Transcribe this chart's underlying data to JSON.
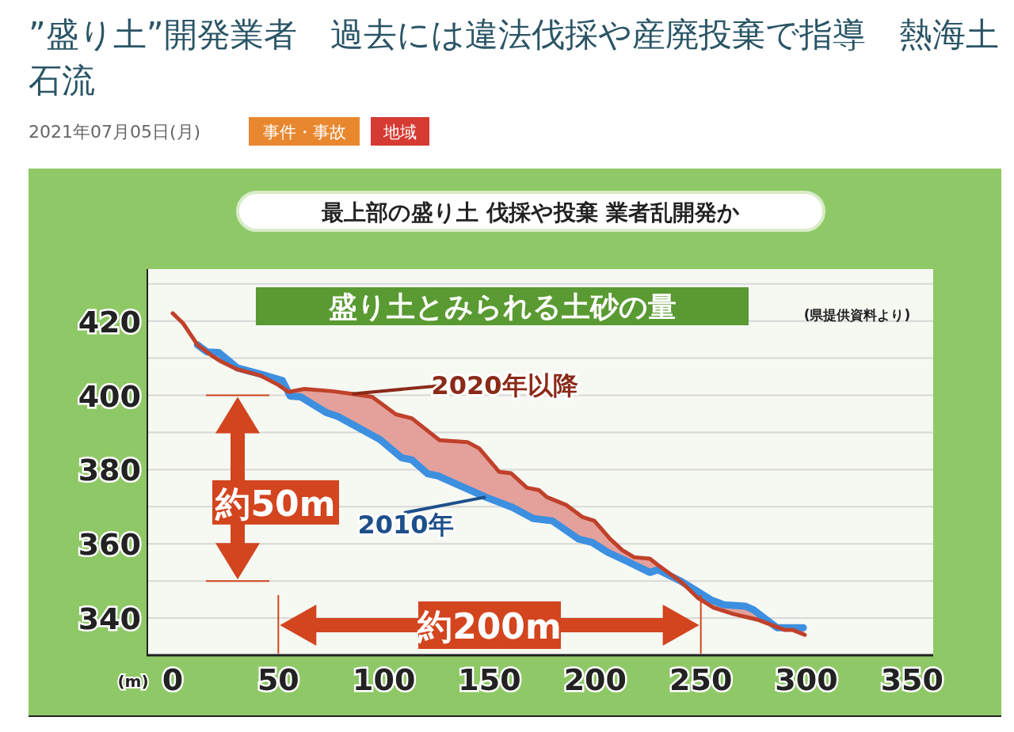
{
  "chart_data": {
    "type": "line",
    "title": "盛り土とみられる土砂の量",
    "subtitle": "最上部の盛り土 伐採や投棄 業者乱開発か",
    "xlabel": "(m)",
    "annotations": [
      "”盛り土”開発業者　過去には違法伐採や産廃投棄で指導　熱海土石流",
      "2021年07月05日(月)",
      "事件・事故",
      "地域",
      "(県提供資料より)",
      "約50m",
      "約200m"
    ],
    "series": [
      {
        "name": "2020年以降",
        "color": "#c0412a",
        "x": [
          0,
          4.9,
          11.7,
          16.2,
          19.2,
          22.9,
          30.5,
          41.7,
          50,
          54.9,
          62.4,
          75.6,
          85,
          94.4,
          105.6,
          113.2,
          126.3,
          139.5,
          145.1,
          154.5,
          160.2,
          167.7,
          173.3,
          177.1,
          186.5,
          194,
          199.6,
          207.1,
          212.8,
          218.4,
          225.9,
          229.7,
          241,
          248.5,
          256,
          265.4,
          276.7,
          289.8,
          293.6,
          299.2
        ],
        "values": [
          422.1,
          419.4,
          413.6,
          411.7,
          410.4,
          409.1,
          407,
          405.3,
          402.8,
          400.9,
          401.7,
          401.1,
          400.4,
          399.6,
          394.9,
          393.8,
          387.9,
          387.4,
          385.7,
          379.4,
          379,
          375.1,
          374.5,
          372.6,
          370.4,
          367.2,
          366.2,
          361.3,
          358.3,
          356.4,
          356,
          354.3,
          349.6,
          345.5,
          342.8,
          341.1,
          339.6,
          336.8,
          336.8,
          335.5
        ]
      },
      {
        "name": "2010年",
        "color": "#3d8fe0",
        "x": [
          11.7,
          16.2,
          21.8,
          30.5,
          41.7,
          51.9,
          55.6,
          60.5,
          72.9,
          78.2,
          98.1,
          108.3,
          113.2,
          120.7,
          125.6,
          148.1,
          160.9,
          170.7,
          179.7,
          192.1,
          198.5,
          206,
          215.8,
          225.9,
          229.7,
          241,
          254.9,
          260.9,
          271.1,
          274.8,
          286.1,
          298.5
        ],
        "values": [
          413.6,
          411.7,
          411.5,
          407.4,
          405.7,
          404,
          399.8,
          399.6,
          395.3,
          394.3,
          388.1,
          383.2,
          382.6,
          378.9,
          378.3,
          372.6,
          369.8,
          366.8,
          366.2,
          361.3,
          360.4,
          357.7,
          355.1,
          352.3,
          353,
          349.8,
          344.9,
          343.6,
          343.2,
          342.3,
          337.4,
          337.4
        ]
      }
    ],
    "ref_lines": [
      {
        "axis": "y",
        "value": 400,
        "color": "#d2451e"
      },
      {
        "axis": "y",
        "value": 350,
        "color": "#d2451e"
      },
      {
        "axis": "x",
        "value": 50,
        "color": "#d2451e"
      },
      {
        "axis": "x",
        "value": 250,
        "color": "#d2451e"
      }
    ],
    "xlim": [
      -12,
      360
    ],
    "xticks": [
      0,
      50,
      100,
      150,
      200,
      250,
      300,
      350
    ],
    "ylim": [
      330,
      434
    ],
    "yticks": [
      340,
      {
        "value": 350,
        "label": null
      },
      360,
      {
        "value": 370,
        "label": null
      },
      380,
      {
        "value": 390,
        "label": null
      },
      400,
      {
        "value": 410,
        "label": null
      },
      420,
      {
        "value": 430,
        "label": null
      }
    ],
    "grid": "y",
    "marker": "none",
    "line_style": "solid"
  }
}
